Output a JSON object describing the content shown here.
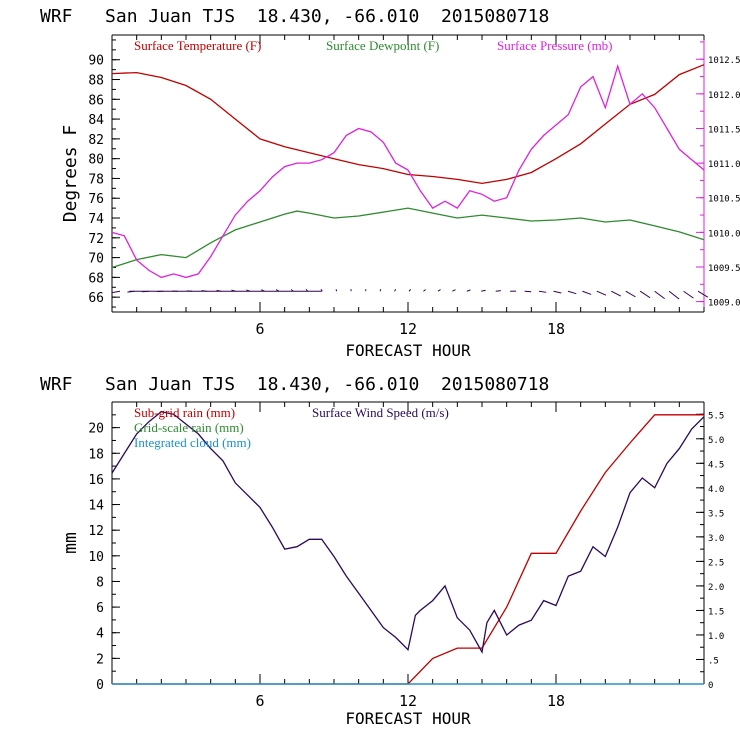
{
  "chart_data": [
    {
      "type": "line",
      "title": "WRF   San Juan TJS  18.430, -66.010  2015080718",
      "xlabel": "FORECAST HOUR",
      "ylabel": "Degrees F",
      "xlim": [
        0,
        24
      ],
      "ylim": [
        64.5,
        92.5
      ],
      "y2lim": [
        1008.85,
        1012.85
      ],
      "x_ticks": [
        6,
        12,
        18
      ],
      "y_ticks": [
        66,
        68,
        70,
        72,
        74,
        76,
        78,
        80,
        82,
        84,
        86,
        88,
        90
      ],
      "y2_ticks": [
        "1009.0",
        "1009.5",
        "1010.0",
        "1010.5",
        "1011.0",
        "1011.5",
        "1012.0",
        "1012.5"
      ],
      "y2_tick_values": [
        1009.0,
        1009.5,
        1010.0,
        1010.5,
        1011.0,
        1011.5,
        1012.0,
        1012.5
      ],
      "legend_placement": "top-inside",
      "series": [
        {
          "name": "Surface Temperature (F)",
          "color": "#c00000",
          "axis": "left",
          "points": [
            [
              0,
              88.6
            ],
            [
              1,
              88.7
            ],
            [
              2,
              88.2
            ],
            [
              3,
              87.4
            ],
            [
              4,
              86
            ],
            [
              5,
              84
            ],
            [
              6,
              82
            ],
            [
              7,
              81.2
            ],
            [
              8,
              80.6
            ],
            [
              9,
              80
            ],
            [
              10,
              79.4
            ],
            [
              11,
              79
            ],
            [
              12,
              78.4
            ],
            [
              13,
              78.2
            ],
            [
              14,
              77.9
            ],
            [
              15,
              77.5
            ],
            [
              16,
              77.9
            ],
            [
              17,
              78.6
            ],
            [
              18,
              80
            ],
            [
              19,
              81.5
            ],
            [
              20,
              83.5
            ],
            [
              21,
              85.5
            ],
            [
              22,
              86.5
            ],
            [
              23,
              88.5
            ],
            [
              24,
              89.5
            ]
          ]
        },
        {
          "name": "Surface Dewpoint (F)",
          "color": "#2e8b2e",
          "axis": "left",
          "points": [
            [
              0,
              69
            ],
            [
              1,
              69.8
            ],
            [
              2,
              70.3
            ],
            [
              3,
              70
            ],
            [
              4,
              71.5
            ],
            [
              5,
              72.8
            ],
            [
              6,
              73.6
            ],
            [
              7,
              74.4
            ],
            [
              7.5,
              74.7
            ],
            [
              8,
              74.5
            ],
            [
              9,
              74
            ],
            [
              10,
              74.2
            ],
            [
              11,
              74.6
            ],
            [
              12,
              75
            ],
            [
              13,
              74.5
            ],
            [
              14,
              74
            ],
            [
              15,
              74.3
            ],
            [
              16,
              74
            ],
            [
              17,
              73.7
            ],
            [
              18,
              73.8
            ],
            [
              19,
              74
            ],
            [
              20,
              73.6
            ],
            [
              21,
              73.8
            ],
            [
              22,
              73.2
            ],
            [
              23,
              72.6
            ],
            [
              24,
              71.8
            ]
          ]
        },
        {
          "name": "Surface Pressure (mb)",
          "color": "#dd22dd",
          "axis": "right",
          "points": [
            [
              0,
              1010.0
            ],
            [
              0.5,
              1009.95
            ],
            [
              1,
              1009.6
            ],
            [
              1.5,
              1009.45
            ],
            [
              2,
              1009.35
            ],
            [
              2.5,
              1009.4
            ],
            [
              3,
              1009.35
            ],
            [
              3.5,
              1009.4
            ],
            [
              4,
              1009.65
            ],
            [
              4.5,
              1009.95
            ],
            [
              5,
              1010.25
            ],
            [
              5.5,
              1010.45
            ],
            [
              6,
              1010.6
            ],
            [
              6.5,
              1010.8
            ],
            [
              7,
              1010.95
            ],
            [
              7.5,
              1011.0
            ],
            [
              8,
              1011.0
            ],
            [
              8.5,
              1011.05
            ],
            [
              9,
              1011.15
            ],
            [
              9.5,
              1011.4
            ],
            [
              10,
              1011.5
            ],
            [
              10.5,
              1011.45
            ],
            [
              11,
              1011.3
            ],
            [
              11.5,
              1011.0
            ],
            [
              12,
              1010.9
            ],
            [
              12.5,
              1010.6
            ],
            [
              13,
              1010.35
            ],
            [
              13.5,
              1010.45
            ],
            [
              14,
              1010.35
            ],
            [
              14.5,
              1010.6
            ],
            [
              15,
              1010.55
            ],
            [
              15.5,
              1010.45
            ],
            [
              16,
              1010.5
            ],
            [
              16.5,
              1010.9
            ],
            [
              17,
              1011.2
            ],
            [
              17.5,
              1011.4
            ],
            [
              18,
              1011.55
            ],
            [
              18.5,
              1011.7
            ],
            [
              19,
              1012.1
            ],
            [
              19.5,
              1012.25
            ],
            [
              20,
              1011.8
            ],
            [
              20.5,
              1012.4
            ],
            [
              21,
              1011.85
            ],
            [
              21.5,
              1012.0
            ],
            [
              22,
              1011.8
            ],
            [
              22.5,
              1011.5
            ],
            [
              23,
              1011.2
            ],
            [
              23.5,
              1011.05
            ],
            [
              24,
              1010.9
            ]
          ]
        }
      ],
      "wind_barbs": {
        "color": "#330055",
        "count": 40
      }
    },
    {
      "type": "line",
      "title": "WRF   San Juan TJS  18.430, -66.010  2015080718",
      "xlabel": "FORECAST HOUR",
      "ylabel": "mm",
      "xlim": [
        0,
        24
      ],
      "ylim": [
        0,
        22
      ],
      "y2lim": [
        0,
        5.75
      ],
      "x_ticks": [
        6,
        12,
        18
      ],
      "y_ticks": [
        0,
        2,
        4,
        6,
        8,
        10,
        12,
        14,
        16,
        18,
        20
      ],
      "y2_ticks": [
        "0",
        ".5",
        "1.0",
        "1.5",
        "2.0",
        "2.5",
        "3.0",
        "3.5",
        "4.0",
        "4.5",
        "5.0",
        "5.5"
      ],
      "y2_tick_values": [
        0,
        0.5,
        1.0,
        1.5,
        2.0,
        2.5,
        3.0,
        3.5,
        4.0,
        4.5,
        5.0,
        5.5
      ],
      "legend_placement": "top-left",
      "series": [
        {
          "name": "Sub-grid rain (mm)",
          "color": "#c00000",
          "axis": "left",
          "points": [
            [
              0,
              0
            ],
            [
              12,
              0
            ],
            [
              13,
              2
            ],
            [
              14,
              2.8
            ],
            [
              15,
              2.8
            ],
            [
              16,
              6
            ],
            [
              17,
              10.2
            ],
            [
              18,
              10.2
            ],
            [
              19,
              13.5
            ],
            [
              20,
              16.5
            ],
            [
              21,
              18.8
            ],
            [
              22,
              21
            ],
            [
              23,
              21
            ],
            [
              24,
              21
            ]
          ]
        },
        {
          "name": "Grid-scale rain (mm)",
          "color": "#2e8b2e",
          "axis": "left",
          "points": [
            [
              0,
              0
            ],
            [
              24,
              0
            ]
          ]
        },
        {
          "name": "Integrated cloud (mm)",
          "color": "#1a8fd6",
          "axis": "left",
          "points": [
            [
              0,
              0
            ],
            [
              24,
              0
            ]
          ]
        },
        {
          "name": "Surface Wind Speed (m/s)",
          "color": "#2a0a5a",
          "axis": "right",
          "points": [
            [
              0,
              4.3
            ],
            [
              0.5,
              4.7
            ],
            [
              1,
              5.1
            ],
            [
              1.5,
              5.35
            ],
            [
              2,
              5.55
            ],
            [
              2.5,
              5.5
            ],
            [
              3,
              5.3
            ],
            [
              3.5,
              5.1
            ],
            [
              4,
              4.8
            ],
            [
              4.5,
              4.55
            ],
            [
              5,
              4.1
            ],
            [
              5.5,
              3.85
            ],
            [
              6,
              3.6
            ],
            [
              6.5,
              3.2
            ],
            [
              7,
              2.75
            ],
            [
              7.5,
              2.8
            ],
            [
              8,
              2.95
            ],
            [
              8.5,
              2.95
            ],
            [
              9,
              2.6
            ],
            [
              9.5,
              2.2
            ],
            [
              10,
              1.85
            ],
            [
              10.5,
              1.5
            ],
            [
              11,
              1.15
            ],
            [
              11.5,
              0.95
            ],
            [
              12,
              0.7
            ],
            [
              12.3,
              1.4
            ],
            [
              12.5,
              1.5
            ],
            [
              13,
              1.7
            ],
            [
              13.5,
              2.0
            ],
            [
              14,
              1.35
            ],
            [
              14.5,
              1.1
            ],
            [
              15,
              0.65
            ],
            [
              15.2,
              1.25
            ],
            [
              15.5,
              1.5
            ],
            [
              16,
              1.0
            ],
            [
              16.5,
              1.2
            ],
            [
              17,
              1.3
            ],
            [
              17.5,
              1.7
            ],
            [
              18,
              1.6
            ],
            [
              18.5,
              2.2
            ],
            [
              19,
              2.3
            ],
            [
              19.5,
              2.8
            ],
            [
              20,
              2.6
            ],
            [
              20.5,
              3.2
            ],
            [
              21,
              3.9
            ],
            [
              21.5,
              4.2
            ],
            [
              22,
              4.0
            ],
            [
              22.5,
              4.5
            ],
            [
              23,
              4.8
            ],
            [
              23.5,
              5.2
            ],
            [
              24,
              5.45
            ]
          ]
        }
      ]
    }
  ]
}
